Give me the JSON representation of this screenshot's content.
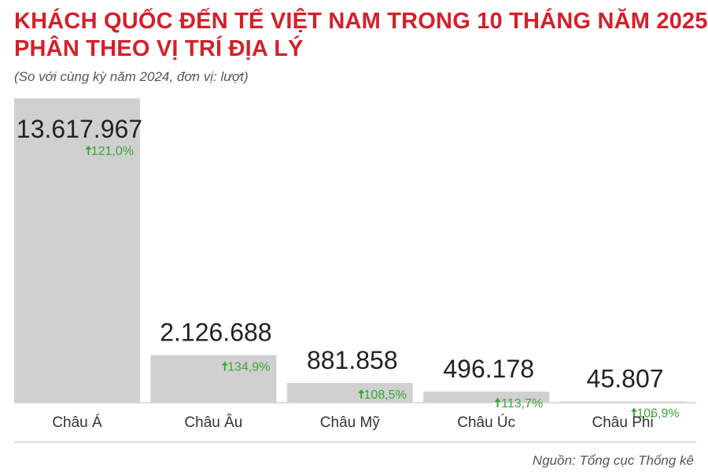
{
  "header": {
    "title_line1": "KHÁCH QUỐC ĐẾN TẾ VIỆT NAM TRONG 10 THÁNG NĂM 2025",
    "title_line2": "PHÂN THEO VỊ TRÍ ĐỊA LÝ",
    "subtitle": "(So với cùng kỳ năm 2024, đơn vị: lượt)"
  },
  "source": "Nguồn: Tổng cục Thống kê",
  "colors": {
    "title": "#d4202a",
    "bar": "#d0d0d0",
    "value_text": "#222222",
    "growth": "#3aa63a",
    "axis_line": "#bbbbbb"
  },
  "chart_data": {
    "type": "bar",
    "title": "KHÁCH QUỐC ĐẾN TẾ VIỆT NAM TRONG 10 THÁNG NĂM 2025 PHÂN THEO VỊ TRÍ ĐỊA LÝ",
    "subtitle": "(So với cùng kỳ năm 2024, đơn vị: lượt)",
    "categories": [
      "Châu Á",
      "Châu Âu",
      "Châu Mỹ",
      "Châu Úc",
      "Châu Phi"
    ],
    "values": [
      13617967,
      2126688,
      881858,
      496178,
      45807
    ],
    "value_labels": [
      "13.617.967",
      "2.126.688",
      "881.858",
      "496.178",
      "45.807"
    ],
    "growth_labels": [
      "121,0%",
      "134,9%",
      "108,5%",
      "113,7%",
      "106,9%"
    ],
    "growth_icon": "arrow-up-icon",
    "xlabel": "",
    "ylabel": "",
    "grid": false,
    "legend": "none"
  }
}
